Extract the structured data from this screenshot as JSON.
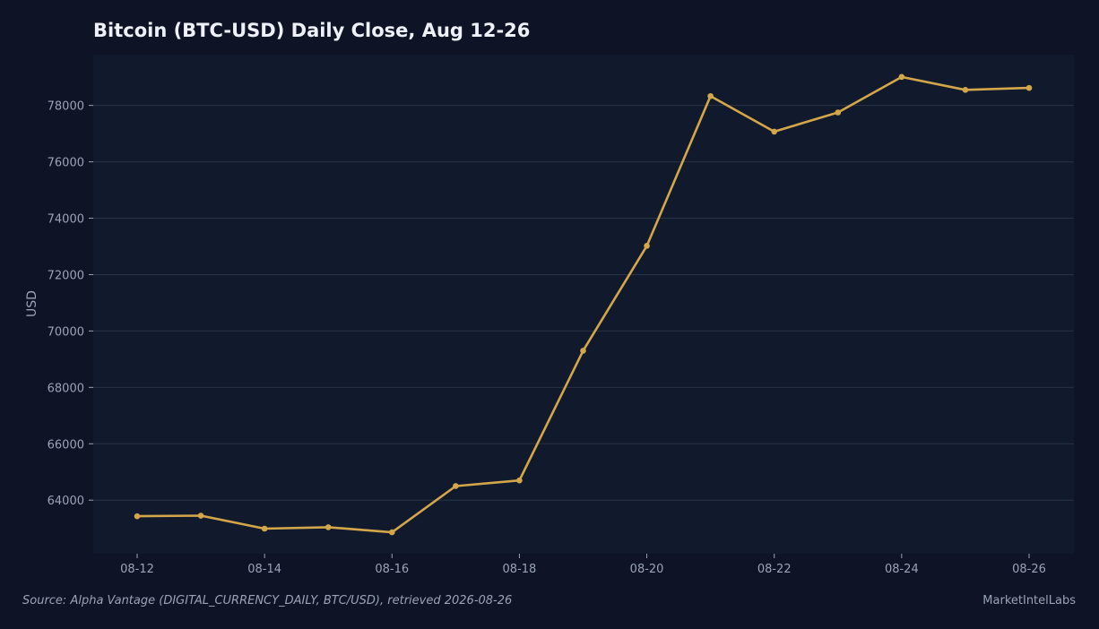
{
  "chart_data": {
    "type": "line",
    "title": "Bitcoin (BTC-USD) Daily Close, Aug 12-26",
    "xlabel": "",
    "ylabel": "USD",
    "x": [
      "08-12",
      "08-13",
      "08-14",
      "08-15",
      "08-16",
      "08-17",
      "08-18",
      "08-19",
      "08-20",
      "08-21",
      "08-22",
      "08-23",
      "08-24",
      "08-25",
      "08-26"
    ],
    "series": [
      {
        "values": [
          63430,
          63450,
          62990,
          63040,
          62860,
          64500,
          64700,
          69300,
          73020,
          78330,
          77070,
          77750,
          79010,
          78550,
          78620
        ],
        "color": "#d4a64a"
      }
    ],
    "x_tick_labels": [
      "08-12",
      "08-14",
      "08-16",
      "08-18",
      "08-20",
      "08-22",
      "08-24",
      "08-26"
    ],
    "y_ticks": [
      64000,
      66000,
      68000,
      70000,
      72000,
      74000,
      76000,
      78000
    ],
    "ylim": [
      62100,
      79800
    ],
    "grid": "horizontal",
    "legend": "none"
  },
  "footer": {
    "source": "Source: Alpha Vantage (DIGITAL_CURRENCY_DAILY, BTC/USD), retrieved 2026-08-26",
    "brand": "MarketIntelLabs"
  },
  "colors": {
    "background": "#0e1426",
    "plot_background": "#111a2d",
    "grid": "#283248",
    "line": "#d4a64a",
    "text": "#9aa3b5",
    "title": "#eef1f8"
  }
}
